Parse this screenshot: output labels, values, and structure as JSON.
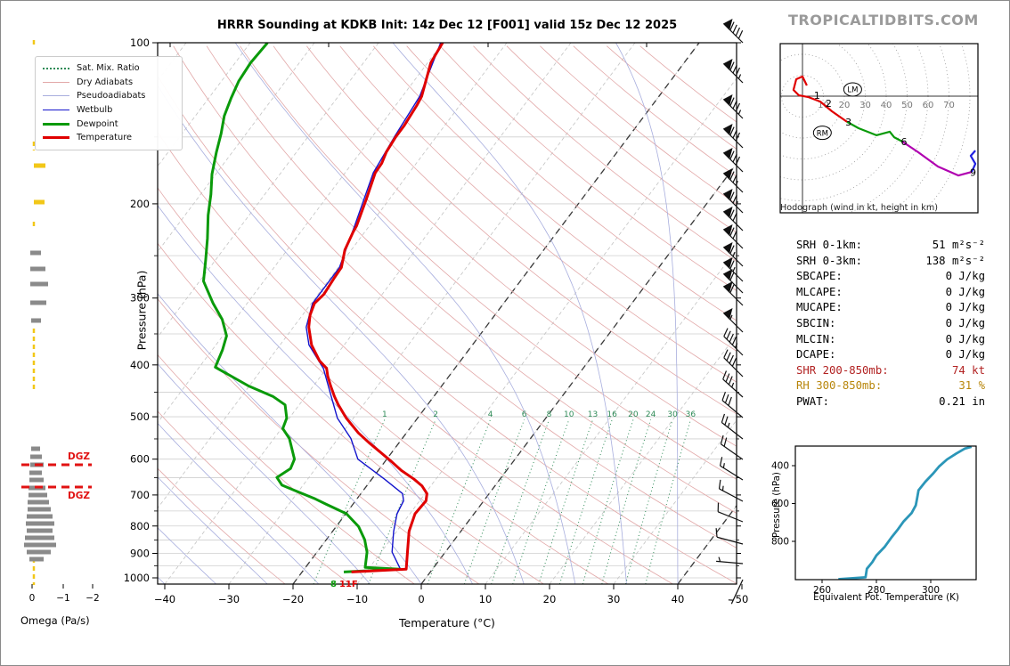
{
  "title": "HRRR Sounding at KDKB Init: 14z Dec 12 [F001] valid 15z Dec 12 2025",
  "logo": "TROPICALTIDBITS.COM",
  "legend": {
    "items": [
      {
        "label": "Sat. Mix. Ratio",
        "style": "s-mix"
      },
      {
        "label": "Dry Adiabats",
        "style": "s-dry"
      },
      {
        "label": "Pseudoadiabats",
        "style": "s-pse"
      },
      {
        "label": "Wetbulb",
        "style": "s-wet"
      },
      {
        "label": "Dewpoint",
        "style": "s-dew"
      },
      {
        "label": "Temperature",
        "style": "s-tmp"
      }
    ]
  },
  "surface": {
    "dewpoint_f": "8",
    "temp_f": "11F"
  },
  "dgz": {
    "label": "DGZ",
    "levels_y": [
      521,
      546
    ]
  },
  "omega": {
    "label": "Omega (Pa/s)",
    "ticks": [
      {
        "v": "0",
        "x": 35
      },
      {
        "v": "−1",
        "x": 70
      },
      {
        "v": "−2",
        "x": 103
      }
    ],
    "zero_x": 37,
    "dashes": [
      [
        44,
        52
      ],
      [
        158,
        168
      ],
      [
        248,
        256
      ],
      [
        368,
        436
      ],
      [
        626,
        656
      ]
    ],
    "bars": [
      {
        "y": 185,
        "x1": 37,
        "x2": 50,
        "c": "yellow"
      },
      {
        "y": 226,
        "x1": 37,
        "x2": 49,
        "c": "yellow"
      },
      {
        "y": 283,
        "x1": 33,
        "x2": 45,
        "c": "gray"
      },
      {
        "y": 301,
        "x1": 33,
        "x2": 50,
        "c": "gray"
      },
      {
        "y": 318,
        "x1": 33,
        "x2": 53,
        "c": "gray"
      },
      {
        "y": 339,
        "x1": 33,
        "x2": 51,
        "c": "gray"
      },
      {
        "y": 359,
        "x1": 34,
        "x2": 45,
        "c": "gray"
      },
      {
        "y": 503,
        "x1": 34,
        "x2": 44,
        "c": "gray"
      },
      {
        "y": 512,
        "x1": 33,
        "x2": 46,
        "c": "gray"
      },
      {
        "y": 521,
        "x1": 33,
        "x2": 48,
        "c": "gray"
      },
      {
        "y": 530,
        "x1": 32,
        "x2": 46,
        "c": "gray"
      },
      {
        "y": 538,
        "x1": 32,
        "x2": 48,
        "c": "gray"
      },
      {
        "y": 547,
        "x1": 31,
        "x2": 50,
        "c": "gray"
      },
      {
        "y": 555,
        "x1": 31,
        "x2": 52,
        "c": "gray"
      },
      {
        "y": 563,
        "x1": 30,
        "x2": 54,
        "c": "gray"
      },
      {
        "y": 571,
        "x1": 30,
        "x2": 56,
        "c": "gray"
      },
      {
        "y": 579,
        "x1": 29,
        "x2": 58,
        "c": "gray"
      },
      {
        "y": 587,
        "x1": 28,
        "x2": 60,
        "c": "gray"
      },
      {
        "y": 595,
        "x1": 29,
        "x2": 58,
        "c": "gray"
      },
      {
        "y": 603,
        "x1": 27,
        "x2": 60,
        "c": "gray"
      },
      {
        "y": 611,
        "x1": 26,
        "x2": 62,
        "c": "gray"
      },
      {
        "y": 619,
        "x1": 29,
        "x2": 56,
        "c": "gray"
      },
      {
        "y": 627,
        "x1": 32,
        "x2": 48,
        "c": "gray"
      }
    ],
    "colors": {
      "yellow": "#f2c718",
      "gray": "#8a8a8a"
    }
  },
  "stats": {
    "rows": [
      {
        "label": "SRH 0-1km:",
        "value": "51",
        "unit": "m²s⁻²",
        "color": "#000000"
      },
      {
        "label": "SRH 0-3km:",
        "value": "138",
        "unit": "m²s⁻²",
        "color": "#000000"
      },
      {
        "label": "SBCAPE:",
        "value": "0",
        "unit": "J/kg",
        "color": "#000000"
      },
      {
        "label": "MLCAPE:",
        "value": "0",
        "unit": "J/kg",
        "color": "#000000"
      },
      {
        "label": "MUCAPE:",
        "value": "0",
        "unit": "J/kg",
        "color": "#000000"
      },
      {
        "label": "SBCIN:",
        "value": "0",
        "unit": "J/kg",
        "color": "#000000"
      },
      {
        "label": "MLCIN:",
        "value": "0",
        "unit": "J/kg",
        "color": "#000000"
      },
      {
        "label": "DCAPE:",
        "value": "0",
        "unit": "J/kg",
        "color": "#000000"
      },
      {
        "label": "SHR 200-850mb:",
        "value": "74",
        "unit": "kt",
        "color": "#b22222"
      },
      {
        "label": "RH 300-850mb:",
        "value": "31",
        "unit": "%",
        "color": "#b8860b"
      },
      {
        "label": "PWAT:",
        "value": "0.21",
        "unit": "in",
        "color": "#000000"
      }
    ]
  },
  "wind_barbs": {
    "x": 833,
    "barbs": [
      {
        "y": 47,
        "kt": 90,
        "rot": -135
      },
      {
        "y": 92,
        "kt": 85,
        "rot": -135
      },
      {
        "y": 132,
        "kt": 85,
        "rot": -135
      },
      {
        "y": 165,
        "kt": 80,
        "rot": -135
      },
      {
        "y": 192,
        "kt": 80,
        "rot": -135
      },
      {
        "y": 215,
        "kt": 75,
        "rot": -135
      },
      {
        "y": 238,
        "kt": 75,
        "rot": -135
      },
      {
        "y": 258,
        "kt": 70,
        "rot": -135
      },
      {
        "y": 278,
        "kt": 70,
        "rot": -135
      },
      {
        "y": 298,
        "kt": 65,
        "rot": -135
      },
      {
        "y": 315,
        "kt": 65,
        "rot": -135
      },
      {
        "y": 328,
        "kt": 60,
        "rot": -135
      },
      {
        "y": 342,
        "kt": 60,
        "rot": -135
      },
      {
        "y": 372,
        "kt": 55,
        "rot": -135
      },
      {
        "y": 398,
        "kt": 45,
        "rot": -135
      },
      {
        "y": 422,
        "kt": 40,
        "rot": -135
      },
      {
        "y": 445,
        "kt": 35,
        "rot": -138
      },
      {
        "y": 468,
        "kt": 30,
        "rot": -140
      },
      {
        "y": 492,
        "kt": 25,
        "rot": -142
      },
      {
        "y": 515,
        "kt": 20,
        "rot": -145
      },
      {
        "y": 538,
        "kt": 15,
        "rot": -148
      },
      {
        "y": 562,
        "kt": 15,
        "rot": -152
      },
      {
        "y": 585,
        "kt": 10,
        "rot": -158
      },
      {
        "y": 610,
        "kt": 10,
        "rot": -165
      },
      {
        "y": 632,
        "kt": 5,
        "rot": -175
      },
      {
        "y": 650,
        "kt": 3,
        "rot": 115
      }
    ]
  },
  "chart_data": [
    {
      "id": "skewt",
      "type": "line",
      "title": "HRRR Sounding at KDKB Init: 14z Dec 12 [F001] valid 15z Dec 12 2025",
      "xlabel": "Temperature (°C)",
      "ylabel": "Pressure (hPa)",
      "xlim": [
        -40,
        50
      ],
      "p_range": [
        100,
        1027
      ],
      "pressure_ticks": [
        100,
        200,
        300,
        400,
        500,
        600,
        700,
        800,
        900,
        1000
      ],
      "pressure_minor_ticks": [
        150,
        250,
        350,
        450,
        550,
        650,
        750,
        850,
        950
      ],
      "temp_ticks": [
        -40,
        -30,
        -20,
        -10,
        0,
        10,
        20,
        30,
        40,
        50
      ],
      "isotherms": {
        "from": -120,
        "to": 50,
        "step": 10,
        "highlight": [
          -20,
          0,
          40
        ]
      },
      "dry_adiabats_thetaK": {
        "from": 250,
        "to": 470,
        "step": 10
      },
      "pseudoadiabats_T0C": {
        "from": -64,
        "to": 40,
        "step": 8
      },
      "mixing_ratio_g_kg": [
        1,
        2,
        4,
        6,
        8,
        10,
        13,
        16,
        20,
        24,
        30,
        36
      ],
      "series": {
        "temperature": [
          [
            100,
            -60
          ],
          [
            109,
            -59.5
          ],
          [
            126,
            -57
          ],
          [
            131,
            -56.7
          ],
          [
            143,
            -56.3
          ],
          [
            150,
            -56.3
          ],
          [
            160,
            -56
          ],
          [
            168,
            -55.4
          ],
          [
            175,
            -55.3
          ],
          [
            196,
            -53.6
          ],
          [
            220,
            -52
          ],
          [
            226,
            -51.8
          ],
          [
            244,
            -51
          ],
          [
            263,
            -49.5
          ],
          [
            274,
            -49.4
          ],
          [
            295,
            -49.1
          ],
          [
            307,
            -49.5
          ],
          [
            323,
            -48.8
          ],
          [
            340,
            -47.6
          ],
          [
            367,
            -45.1
          ],
          [
            393,
            -42
          ],
          [
            406,
            -40
          ],
          [
            420,
            -38.9
          ],
          [
            438,
            -37.3
          ],
          [
            458,
            -35.5
          ],
          [
            475,
            -33.9
          ],
          [
            503,
            -31.1
          ],
          [
            536,
            -27.5
          ],
          [
            559,
            -24.7
          ],
          [
            580,
            -22.1
          ],
          [
            607,
            -18.9
          ],
          [
            630,
            -16.4
          ],
          [
            654,
            -13.4
          ],
          [
            673,
            -11.4
          ],
          [
            696,
            -9.7
          ],
          [
            718,
            -9
          ],
          [
            759,
            -9.2
          ],
          [
            818,
            -8.1
          ],
          [
            895,
            -5.9
          ],
          [
            963,
            -4.1
          ],
          [
            975,
            -12.3
          ]
        ],
        "dewpoint": [
          [
            100,
            -87.3
          ],
          [
            109,
            -87.6
          ],
          [
            118,
            -87.3
          ],
          [
            127,
            -86.5
          ],
          [
            137,
            -85.5
          ],
          [
            148,
            -83.9
          ],
          [
            160,
            -82.5
          ],
          [
            176,
            -80.6
          ],
          [
            192,
            -78.4
          ],
          [
            210,
            -76.4
          ],
          [
            232,
            -73.8
          ],
          [
            254,
            -71.6
          ],
          [
            279,
            -69.4
          ],
          [
            307,
            -65.3
          ],
          [
            329,
            -62
          ],
          [
            353,
            -59.4
          ],
          [
            375,
            -58.4
          ],
          [
            404,
            -57.5
          ],
          [
            438,
            -50.1
          ],
          [
            458,
            -45.1
          ],
          [
            475,
            -42.2
          ],
          [
            503,
            -40.4
          ],
          [
            526,
            -39.8
          ],
          [
            549,
            -37.6
          ],
          [
            600,
            -34.4
          ],
          [
            625,
            -33.9
          ],
          [
            649,
            -35
          ],
          [
            671,
            -33.3
          ],
          [
            686,
            -30.8
          ],
          [
            712,
            -26.5
          ],
          [
            729,
            -24.1
          ],
          [
            759,
            -19.9
          ],
          [
            802,
            -16.5
          ],
          [
            849,
            -14
          ],
          [
            895,
            -12.2
          ],
          [
            956,
            -10.7
          ],
          [
            963,
            -5.1
          ],
          [
            975,
            -13.5
          ]
        ],
        "wetbulb": [
          [
            100,
            -60.3
          ],
          [
            126,
            -57.3
          ],
          [
            150,
            -56.5
          ],
          [
            175,
            -55.6
          ],
          [
            220,
            -52.3
          ],
          [
            263,
            -49.8
          ],
          [
            307,
            -49.8
          ],
          [
            340,
            -48
          ],
          [
            367,
            -45.5
          ],
          [
            406,
            -40.5
          ],
          [
            458,
            -36
          ],
          [
            503,
            -32.5
          ],
          [
            549,
            -28
          ],
          [
            600,
            -24.5
          ],
          [
            654,
            -18
          ],
          [
            696,
            -13.5
          ],
          [
            718,
            -12.5
          ],
          [
            759,
            -12
          ],
          [
            818,
            -10.5
          ],
          [
            895,
            -8.3
          ],
          [
            963,
            -5
          ],
          [
            975,
            -12.8
          ]
        ]
      },
      "surface_temp_f": "11F",
      "surface_dewpoint_f": "8"
    },
    {
      "id": "hodograph",
      "type": "line",
      "caption": "Hodograph (wind in kt, height in km)",
      "rings_kt": [
        10,
        20,
        30,
        40,
        50,
        60,
        70,
        80
      ],
      "ring_labels": [
        10,
        20,
        30,
        40,
        50,
        60,
        70
      ],
      "segments": [
        {
          "layer": "0-3km",
          "color": "#e00000",
          "points": [
            [
              2.1,
              5.1
            ],
            [
              0,
              9.4
            ],
            [
              -3,
              8.1
            ],
            [
              -4.3,
              3
            ],
            [
              -1.7,
              0.4
            ],
            [
              2.6,
              -0.4
            ],
            [
              8.5,
              -2.6
            ],
            [
              14,
              -7.2
            ],
            [
              21.3,
              -12.3
            ]
          ]
        },
        {
          "layer": "3-6km",
          "color": "#0a9a0a",
          "points": [
            [
              21.3,
              -12.3
            ],
            [
              26.8,
              -15.3
            ],
            [
              35.3,
              -18.7
            ],
            [
              41.7,
              -17
            ],
            [
              43.8,
              -19.6
            ],
            [
              47.7,
              -21.7
            ]
          ]
        },
        {
          "layer": "6-9km",
          "color": "#b000b0",
          "points": [
            [
              47.7,
              -21.7
            ],
            [
              55.3,
              -26.8
            ],
            [
              64.7,
              -33.6
            ],
            [
              74.5,
              -37.9
            ],
            [
              80.9,
              -36.2
            ]
          ]
        },
        {
          "layer": "9km+",
          "color": "#2020e0",
          "points": [
            [
              80.9,
              -36.2
            ],
            [
              82.6,
              -32.3
            ],
            [
              80.4,
              -28.5
            ],
            [
              82.6,
              -26
            ]
          ]
        }
      ],
      "height_markers": [
        {
          "label": "1",
          "u": 5.5,
          "v": -1.3
        },
        {
          "label": "2",
          "u": 11,
          "v": -5
        },
        {
          "label": "3",
          "u": 20.5,
          "v": -14
        },
        {
          "label": "6",
          "u": 47,
          "v": -23.5
        },
        {
          "label": "9",
          "u": 80,
          "v": -38
        }
      ],
      "storm_motion": [
        {
          "label": "LM",
          "u": 24,
          "v": 3.2
        },
        {
          "label": "RM",
          "u": 9.5,
          "v": -17.5
        }
      ]
    },
    {
      "id": "theta_e",
      "type": "line",
      "xlabel": "Equivalent Pot. Temperature (K)",
      "ylabel": "Pressure (hPa)",
      "x_ticks": [
        260,
        280,
        300
      ],
      "y_ticks": [
        400,
        600,
        800
      ],
      "color": "#2b96b8",
      "points": [
        [
          1000,
          266
        ],
        [
          990,
          276
        ],
        [
          945,
          276.5
        ],
        [
          910,
          278.5
        ],
        [
          875,
          280
        ],
        [
          830,
          283
        ],
        [
          780,
          285.5
        ],
        [
          735,
          288
        ],
        [
          695,
          290
        ],
        [
          650,
          293
        ],
        [
          610,
          294.5
        ],
        [
          570,
          295
        ],
        [
          530,
          295.5
        ],
        [
          485,
          298
        ],
        [
          440,
          301
        ],
        [
          405,
          303
        ],
        [
          367,
          306
        ],
        [
          335,
          309.5
        ],
        [
          310,
          312.5
        ],
        [
          300,
          315
        ]
      ]
    }
  ]
}
